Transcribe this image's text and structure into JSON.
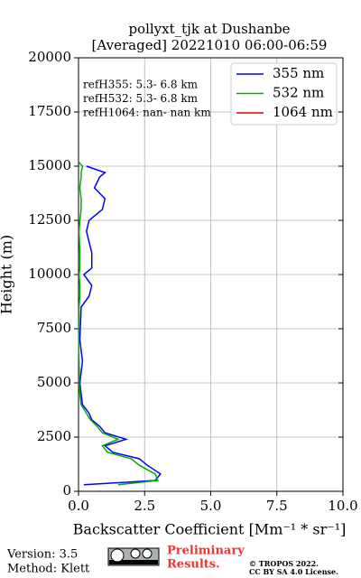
{
  "chart_data": {
    "type": "line",
    "orientation": "vertical-profile",
    "title": [
      "pollyxt_tjk at Dushanbe",
      "[Averaged] 20221010 06:00-06:59"
    ],
    "xlabel": "Backscatter Coefficient [Mm⁻¹ * sr⁻¹]",
    "ylabel": "Height (m)",
    "annotations": [
      "refH355:  5.3- 6.8 km",
      "refH532:  5.3- 6.8 km",
      "refH1064:  nan- nan km"
    ],
    "y": [
      300,
      500,
      800,
      1200,
      1500,
      1800,
      2100,
      2400,
      2700,
      3000,
      3300,
      3600,
      4000,
      4500,
      5000,
      5500,
      6000,
      6500,
      7000,
      8500,
      9000,
      9500,
      10000,
      10300,
      11000,
      12000,
      12500,
      13000,
      13500,
      14000,
      14500,
      14700,
      15000,
      15200
    ],
    "series": [
      {
        "name": "355 nm",
        "color": "#0000ff",
        "values": [
          0.2,
          2.9,
          3.1,
          2.6,
          2.3,
          1.3,
          1.0,
          1.8,
          1.0,
          0.8,
          0.5,
          0.4,
          0.15,
          0.1,
          0.05,
          0.1,
          0.15,
          0.1,
          0.05,
          0.1,
          0.4,
          0.5,
          0.2,
          0.5,
          0.5,
          0.3,
          0.4,
          0.9,
          1.0,
          0.6,
          0.8,
          1.0,
          0.3,
          null
        ]
      },
      {
        "name": "532 nm",
        "color": "#00b000",
        "values": [
          1.5,
          3.0,
          2.9,
          2.3,
          2.0,
          1.1,
          0.9,
          1.5,
          0.9,
          0.7,
          0.45,
          0.3,
          0.1,
          0.05,
          0.02,
          0.03,
          0.02,
          0.01,
          0.01,
          0.02,
          0.05,
          0.05,
          0.02,
          0.05,
          0.05,
          0.02,
          0.05,
          0.1,
          0.1,
          0.05,
          0.1,
          0.1,
          0.15,
          0.0
        ]
      },
      {
        "name": "1064 nm",
        "color": "#e00000",
        "values": [
          null,
          null,
          null,
          null,
          null,
          null,
          null,
          null,
          null,
          null,
          null,
          null,
          null,
          null,
          null,
          null,
          null,
          null,
          null,
          null,
          null,
          null,
          null,
          null,
          null,
          null,
          null,
          null,
          null,
          null,
          null,
          null,
          null,
          null
        ]
      }
    ],
    "xlim": [
      0,
      10
    ],
    "xticks": [
      {
        "value": 0,
        "label": "0.0"
      },
      {
        "value": 2.5,
        "label": "2.5"
      },
      {
        "value": 5,
        "label": "5.0"
      },
      {
        "value": 7.5,
        "label": "7.5"
      },
      {
        "value": 10,
        "label": "10.0"
      }
    ],
    "ylim": [
      0,
      20000
    ],
    "yticks": [
      0,
      2500,
      5000,
      7500,
      10000,
      12500,
      15000,
      17500,
      20000
    ],
    "grid": true,
    "legend": "upper right",
    "version": "Version: 3.5",
    "method": "Method: Klett",
    "preliminary": [
      "Preliminary",
      "Results."
    ],
    "copyright": [
      "© TROPOS 2022.",
      "CC BY SA 4.0 License."
    ]
  }
}
